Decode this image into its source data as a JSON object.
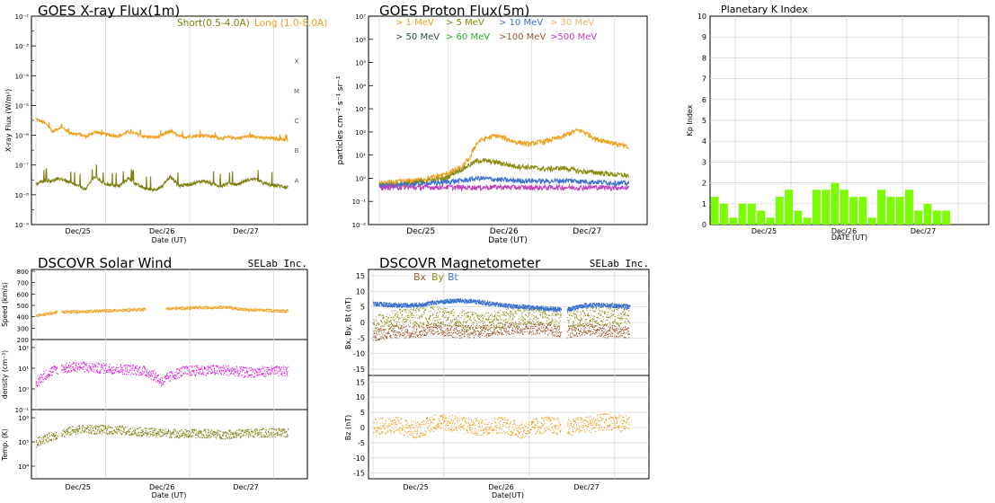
{
  "colors": {
    "short": "#7f7f0f",
    "long": "#f0a020",
    "p1": "#f0a020",
    "p5": "#8a8a10",
    "p10": "#3a6fd0",
    "p30": "#f0b070",
    "p50": "#2f4f4f",
    "p60": "#20b020",
    "p100": "#a0522d",
    "p500": "#c040c0",
    "kp": "#7cfc00",
    "speed": "#f0a020",
    "density": "#e020e0",
    "temp": "#7f7f0f",
    "bx": "#a0522d",
    "by": "#8a8a10",
    "bt": "#3a6fd0",
    "bz": "#f0a020",
    "grid": "#d0d0d0"
  },
  "xray": {
    "title": "GOES X-ray Flux(1m)",
    "legend_short": "Short(0.5-4.0A)",
    "legend_long": "Long (1.0-8.0A)",
    "ylabel": "X-ray Flux (W/m²)",
    "xlabel": "Date (UT)",
    "xticks": [
      "Dec/25",
      "Dec/26",
      "Dec/27"
    ],
    "yticks": [
      "10⁻⁹",
      "10⁻⁸",
      "10⁻⁷",
      "10⁻⁶",
      "10⁻⁵",
      "10⁻⁴",
      "10⁻³",
      "10⁻²"
    ],
    "classes": [
      "A",
      "B",
      "C",
      "M",
      "X"
    ]
  },
  "proton": {
    "title": "GOES Proton Flux(5m)",
    "legend": [
      "> 1 MeV",
      "> 5 MeV",
      "> 10 MeV",
      "> 30 MeV",
      "> 50 MeV",
      "> 60 MeV",
      ">100 MeV",
      ">500 MeV"
    ],
    "ylabel": "particles cm⁻² s⁻¹ sr⁻¹",
    "xlabel": "Date (UT)",
    "xticks": [
      "Dec/25",
      "Dec/26",
      "Dec/27"
    ],
    "yticks": [
      "10⁻²",
      "10⁻¹",
      "10⁰",
      "10¹",
      "10²",
      "10³",
      "10⁴",
      "10⁵",
      "10⁶",
      "10⁷"
    ]
  },
  "kp": {
    "title": "Planetary K Index",
    "ylabel": "Kp Index",
    "xlabel": "DATE (UT)",
    "xticks": [
      "Dec/25",
      "Dec/26",
      "Dec/27"
    ],
    "yticks": [
      "0",
      "1",
      "2",
      "3",
      "4",
      "5",
      "6",
      "7",
      "8",
      "9",
      "10"
    ]
  },
  "wind": {
    "title": "DSCOVR Solar Wind",
    "brand": "SELab Inc.",
    "speed_label": "Speed (km/s)",
    "speed_ticks": [
      "200",
      "300",
      "400",
      "500",
      "600",
      "700",
      "800"
    ],
    "density_label": "density (cm⁻³)",
    "density_ticks": [
      "10⁻¹",
      "10⁰",
      "10¹",
      "10²"
    ],
    "temp_label": "Temp. (K)",
    "temp_ticks": [
      "10⁴",
      "10⁵",
      "10⁶"
    ],
    "xlabel": "Date (UT)",
    "xticks": [
      "Dec/25",
      "Dec/26",
      "Dec/27"
    ]
  },
  "mag": {
    "title": "DSCOVR Magnetometer",
    "brand": "SELab Inc.",
    "legend": [
      "Bx",
      "By",
      "Bt"
    ],
    "top_label": "Bx, By, Bt (nT)",
    "bz_label": "Bz (nT)",
    "ticks": [
      "-15",
      "-10",
      "-5",
      "0",
      "5",
      "10",
      "15"
    ],
    "xlabel": "Date(UT)",
    "xticks": [
      "Dec/25",
      "Dec/26",
      "Dec/27"
    ]
  },
  "chart_data": [
    {
      "type": "line",
      "title": "GOES X-ray Flux(1m)",
      "ylabel": "X-ray Flux (W/m²)",
      "xlabel": "Date (UT)",
      "yscale": "log",
      "ylim": [
        1e-09,
        0.01
      ],
      "x": [
        0,
        0.1,
        0.2,
        0.3,
        0.4,
        0.5,
        0.6,
        0.7,
        0.8,
        0.9,
        1.0,
        1.1,
        1.2,
        1.3,
        1.4,
        1.5,
        1.6,
        1.7,
        1.8,
        1.9,
        2.0,
        2.1,
        2.2,
        2.3,
        2.4,
        2.5,
        2.6,
        2.7,
        2.8,
        2.9,
        3.0,
        3.1
      ],
      "x_unit": "days since Dec/24 16:00 UT (ticks at Dec/25 ≈ 0.33, Dec/26 ≈ 1.33, Dec/27 ≈ 2.33)",
      "series": [
        {
          "name": "Long (1.0-8.0A)",
          "values": [
            3.5e-06,
            2.6e-06,
            1.3e-06,
            1.9e-06,
            1.2e-06,
            1.1e-06,
            9e-07,
            1.3e-06,
            1.1e-06,
            1e-06,
            9.5e-07,
            1.3e-06,
            1.1e-06,
            9e-07,
            8.5e-07,
            9.5e-07,
            1.4e-06,
            9e-07,
            9e-07,
            9.5e-07,
            1e-06,
            9e-07,
            8e-07,
            8.5e-07,
            8e-07,
            9e-07,
            9.5e-07,
            8e-07,
            8e-07,
            7.5e-07,
            7e-07,
            7e-07
          ]
        },
        {
          "name": "Short(0.5-4.0A)",
          "values": [
            2.2e-08,
            3e-08,
            3e-08,
            3.5e-08,
            2.5e-08,
            2e-08,
            1.5e-08,
            4e-08,
            2.5e-08,
            2.1e-08,
            2e-08,
            3.5e-08,
            2.2e-08,
            1.6e-08,
            1.5e-08,
            1.8e-08,
            4e-08,
            2e-08,
            2.2e-08,
            2.5e-08,
            3e-08,
            2.3e-08,
            2e-08,
            2.5e-08,
            2.2e-08,
            3e-08,
            3.5e-08,
            2.5e-08,
            2.1e-08,
            2e-08,
            1.8e-08,
            1.8e-08
          ]
        }
      ]
    },
    {
      "type": "line",
      "title": "GOES Proton Flux(5m)",
      "ylabel": "particles cm⁻² s⁻¹ sr⁻¹",
      "xlabel": "Date (UT)",
      "yscale": "log",
      "ylim": [
        0.01,
        10000000.0
      ],
      "x": [
        0,
        0.2,
        0.4,
        0.6,
        0.8,
        1.0,
        1.1,
        1.2,
        1.4,
        1.6,
        1.8,
        2.0,
        2.2,
        2.3,
        2.4,
        2.6,
        2.8,
        3.0
      ],
      "x_unit": "days since Dec/24 16:00 UT",
      "series": [
        {
          "name": "> 1 MeV",
          "values": [
            0.6,
            0.7,
            0.8,
            1.0,
            1.5,
            3,
            8,
            40,
            70,
            40,
            30,
            40,
            60,
            90,
            120,
            50,
            35,
            20
          ]
        },
        {
          "name": "> 5 MeV",
          "values": [
            0.5,
            0.55,
            0.6,
            0.8,
            1.0,
            2.5,
            4,
            6,
            5,
            3.5,
            3,
            2.5,
            2.8,
            2.5,
            2.0,
            1.8,
            1.5,
            1.3
          ]
        },
        {
          "name": "> 10 MeV",
          "values": [
            0.45,
            0.5,
            0.55,
            0.6,
            0.7,
            0.8,
            0.9,
            1.0,
            0.9,
            0.8,
            0.8,
            0.75,
            0.8,
            0.8,
            0.75,
            0.7,
            0.65,
            0.6
          ]
        },
        {
          "name": ">500 MeV",
          "values": [
            0.4,
            0.42,
            0.4,
            0.41,
            0.42,
            0.4,
            0.41,
            0.4,
            0.42,
            0.41,
            0.4,
            0.4,
            0.41,
            0.4,
            0.4,
            0.41,
            0.4,
            0.4
          ]
        }
      ]
    },
    {
      "type": "bar",
      "title": "Planetary K Index",
      "ylabel": "Kp Index",
      "xlabel": "DATE (UT)",
      "ylim": [
        0,
        10
      ],
      "values": [
        1.33,
        1.0,
        0.33,
        1.0,
        1.0,
        0.67,
        0.33,
        1.33,
        1.67,
        0.67,
        0.33,
        1.67,
        1.67,
        2.0,
        1.67,
        1.33,
        1.33,
        0.33,
        1.67,
        1.33,
        1.33,
        1.67,
        0.67,
        1.0,
        0.67,
        0.67
      ]
    },
    {
      "type": "scatter",
      "title": "DSCOVR Solar Wind",
      "x": [
        0,
        0.25,
        0.5,
        0.75,
        1.0,
        1.25,
        1.5,
        1.75,
        2.0,
        2.25,
        2.5,
        2.75,
        3.0
      ],
      "series": [
        {
          "name": "Speed (km/s)",
          "ylim": [
            200,
            800
          ],
          "values": [
            410,
            440,
            445,
            450,
            455,
            465,
            470,
            475,
            480,
            485,
            460,
            455,
            450
          ]
        },
        {
          "name": "density (cm⁻³)",
          "yscale": "log",
          "ylim": [
            0.1,
            200
          ],
          "values": [
            1.5,
            9,
            12,
            10,
            9,
            8,
            2,
            7,
            8,
            8,
            6,
            7,
            7
          ]
        },
        {
          "name": "Temp. (K)",
          "yscale": "log",
          "ylim": [
            3000,
            2000000
          ],
          "values": [
            90000,
            200000,
            330000,
            320000,
            300000,
            260000,
            230000,
            220000,
            220000,
            200000,
            230000,
            240000,
            230000
          ]
        }
      ]
    },
    {
      "type": "scatter",
      "title": "DSCOVR Magnetometer",
      "x": [
        0,
        0.25,
        0.5,
        0.75,
        1.0,
        1.25,
        1.5,
        1.75,
        2.0,
        2.25,
        2.5,
        2.75,
        3.0
      ],
      "series": [
        {
          "name": "Bt",
          "ylim": [
            -17,
            17
          ],
          "values": [
            6,
            5.5,
            5.5,
            6.5,
            7,
            6.5,
            5.5,
            5,
            4.5,
            4,
            5.5,
            5.5,
            5
          ]
        },
        {
          "name": "By",
          "ylim": [
            -17,
            17
          ],
          "values": [
            -1,
            1,
            2,
            2,
            1,
            0,
            1,
            2,
            2,
            1,
            2,
            2,
            2
          ]
        },
        {
          "name": "Bx",
          "ylim": [
            -17,
            17
          ],
          "values": [
            -4,
            -3,
            -3,
            -2,
            -3,
            -3,
            -2,
            -2,
            -2,
            -3,
            -2,
            -3,
            -3
          ]
        },
        {
          "name": "Bz",
          "ylim": [
            -17,
            17
          ],
          "values": [
            0,
            1,
            -1,
            2,
            1,
            0,
            1,
            -1,
            1,
            0,
            1,
            2,
            1
          ]
        }
      ]
    }
  ]
}
